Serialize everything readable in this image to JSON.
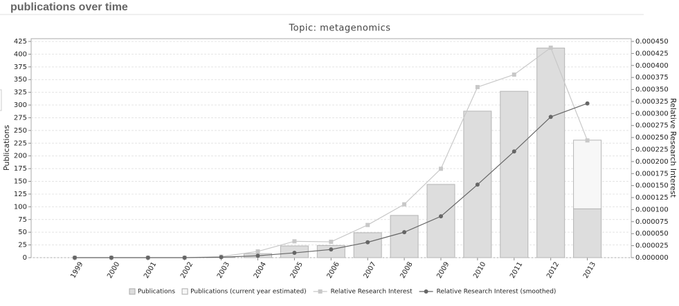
{
  "header": {
    "title": "publications over time"
  },
  "chart_data": {
    "type": "bar",
    "title": "Topic: metagenomics",
    "y_label": "Publications",
    "y2_label": "Relative Research Interest",
    "categories": [
      "1999",
      "2000",
      "2001",
      "2002",
      "2003",
      "2004",
      "2005",
      "2006",
      "2007",
      "2008",
      "2009",
      "2010",
      "2011",
      "2012",
      "2013"
    ],
    "series": [
      {
        "name": "Publications",
        "type": "bar",
        "color": "#dddddd",
        "values": [
          0,
          0,
          0,
          0,
          1,
          8,
          23,
          24,
          49,
          83,
          144,
          288,
          327,
          412,
          96
        ]
      },
      {
        "name": "Publications (current year estimated)",
        "type": "bar",
        "stacked": true,
        "color": "#f7f7f7",
        "values": [
          null,
          null,
          null,
          null,
          null,
          null,
          null,
          null,
          null,
          null,
          null,
          null,
          null,
          null,
          135
        ]
      },
      {
        "name": "Relative Research Interest",
        "type": "line",
        "marker": "square",
        "axis": "y2",
        "color": "#c8c8c8",
        "values": [
          0,
          0,
          0,
          0,
          2e-06,
          1.3e-05,
          3.4e-05,
          3.3e-05,
          6.8e-05,
          0.000111,
          0.000185,
          0.000355,
          0.000381,
          0.000437,
          0.000244
        ]
      },
      {
        "name": "Relative Research Interest (smoothed)",
        "type": "line",
        "marker": "circle",
        "axis": "y2",
        "color": "#666666",
        "values": [
          0,
          0,
          0,
          0,
          1e-06,
          4e-06,
          1e-05,
          1.7e-05,
          3.2e-05,
          5.3e-05,
          8.6e-05,
          0.000152,
          0.000221,
          0.000293,
          0.000321
        ]
      }
    ],
    "ylim": [
      0,
      425
    ],
    "yticks": [
      0,
      25,
      50,
      75,
      100,
      125,
      150,
      175,
      200,
      225,
      250,
      275,
      300,
      325,
      350,
      375,
      400,
      425
    ],
    "y2lim": [
      0,
      0.00045
    ],
    "y2ticks": [
      {
        "value": 0,
        "label": "0.000000"
      },
      {
        "value": 2.5e-05,
        "label": "0.000025"
      },
      {
        "value": 5e-05,
        "label": "0.000050"
      },
      {
        "value": 7.5e-05,
        "label": "0.000075"
      },
      {
        "value": 0.0001,
        "label": "0.000100"
      },
      {
        "value": 0.000125,
        "label": "0.000125"
      },
      {
        "value": 0.00015,
        "label": "0.000150"
      },
      {
        "value": 0.000175,
        "label": "0.000175"
      },
      {
        "value": 0.0002,
        "label": "0.000200"
      },
      {
        "value": 0.000225,
        "label": "0.000225"
      },
      {
        "value": 0.00025,
        "label": "0.000250"
      },
      {
        "value": 0.000275,
        "label": "0.000275"
      },
      {
        "value": 0.0003,
        "label": "0.000300"
      },
      {
        "value": 0.000325,
        "label": "0.000325"
      },
      {
        "value": 0.00035,
        "label": "0.000350"
      },
      {
        "value": 0.000375,
        "label": "0.000375"
      },
      {
        "value": 0.0004,
        "label": "0.000400"
      },
      {
        "value": 0.000425,
        "label": "0.000425"
      },
      {
        "value": 0.00045,
        "label": "0.000450"
      }
    ],
    "grid": true,
    "legend": "bottom"
  }
}
